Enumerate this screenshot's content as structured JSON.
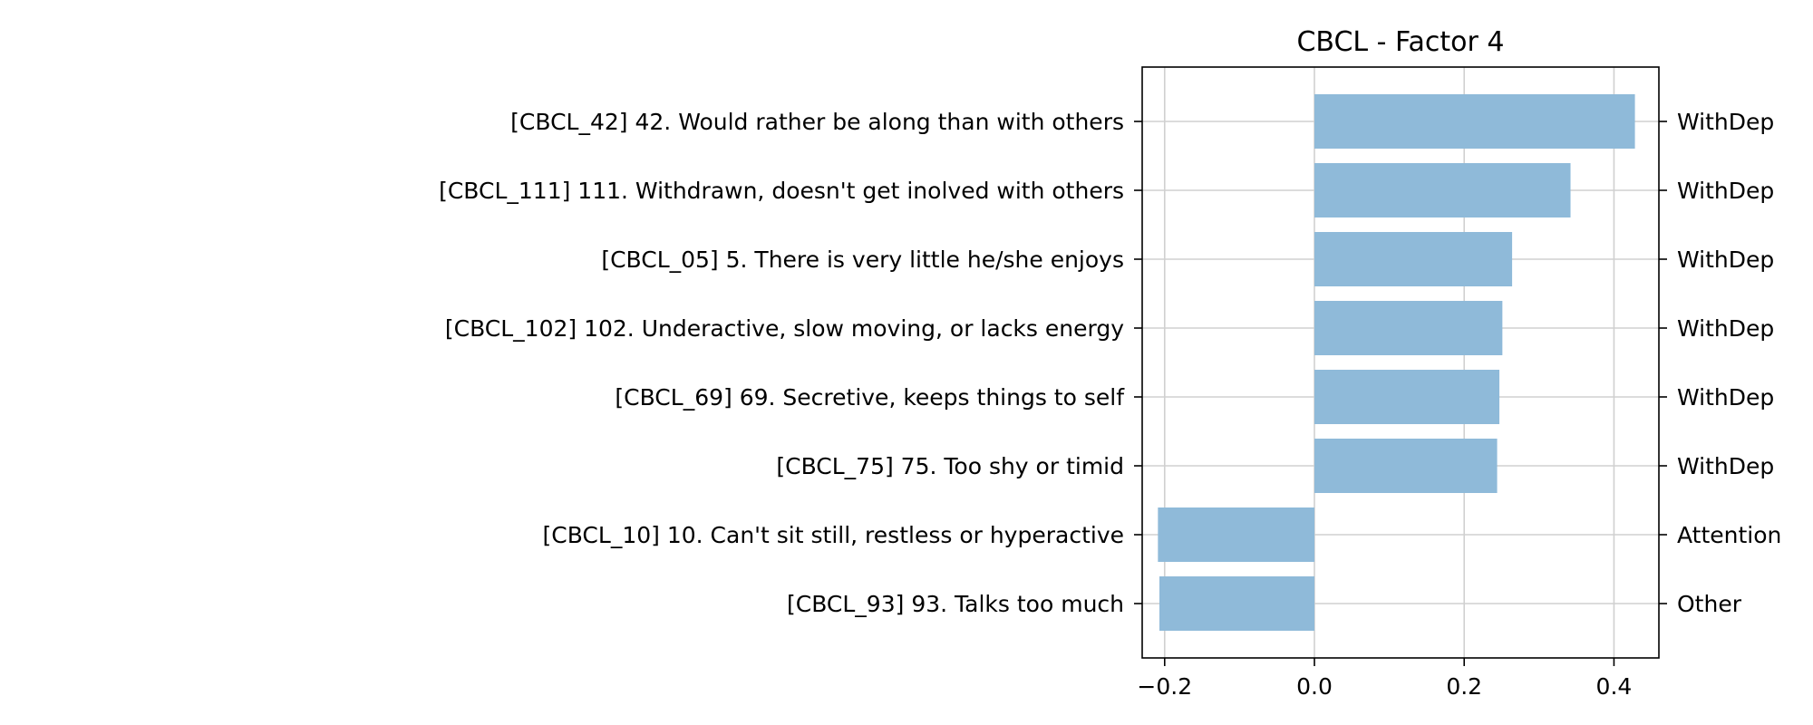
{
  "chart_data": {
    "type": "bar",
    "orientation": "horizontal",
    "title": "CBCL - Factor 4",
    "xlabel": "",
    "ylabel": "",
    "xlim": [
      -0.23,
      0.46
    ],
    "xticks": [
      -0.2,
      0.0,
      0.2,
      0.4
    ],
    "xtick_labels": [
      "−0.2",
      "0.0",
      "0.2",
      "0.4"
    ],
    "grid": true,
    "bar_color": "#8fbad9",
    "items": [
      {
        "label": "[CBCL_42] 42. Would rather be along than with others",
        "value": 0.428,
        "category": "WithDep"
      },
      {
        "label": "[CBCL_111] 111. Withdrawn, doesn't get inolved with others",
        "value": 0.342,
        "category": "WithDep"
      },
      {
        "label": "[CBCL_05] 5. There is very little he/she enjoys",
        "value": 0.264,
        "category": "WithDep"
      },
      {
        "label": "[CBCL_102] 102. Underactive, slow moving, or lacks energy",
        "value": 0.251,
        "category": "WithDep"
      },
      {
        "label": "[CBCL_69] 69. Secretive, keeps things to self",
        "value": 0.247,
        "category": "WithDep"
      },
      {
        "label": "[CBCL_75] 75. Too shy or timid",
        "value": 0.244,
        "category": "WithDep"
      },
      {
        "label": "[CBCL_10] 10. Can't sit still, restless or hyperactive",
        "value": -0.209,
        "category": "Attention"
      },
      {
        "label": "[CBCL_93] 93. Talks too much",
        "value": -0.207,
        "category": "Other"
      }
    ]
  }
}
